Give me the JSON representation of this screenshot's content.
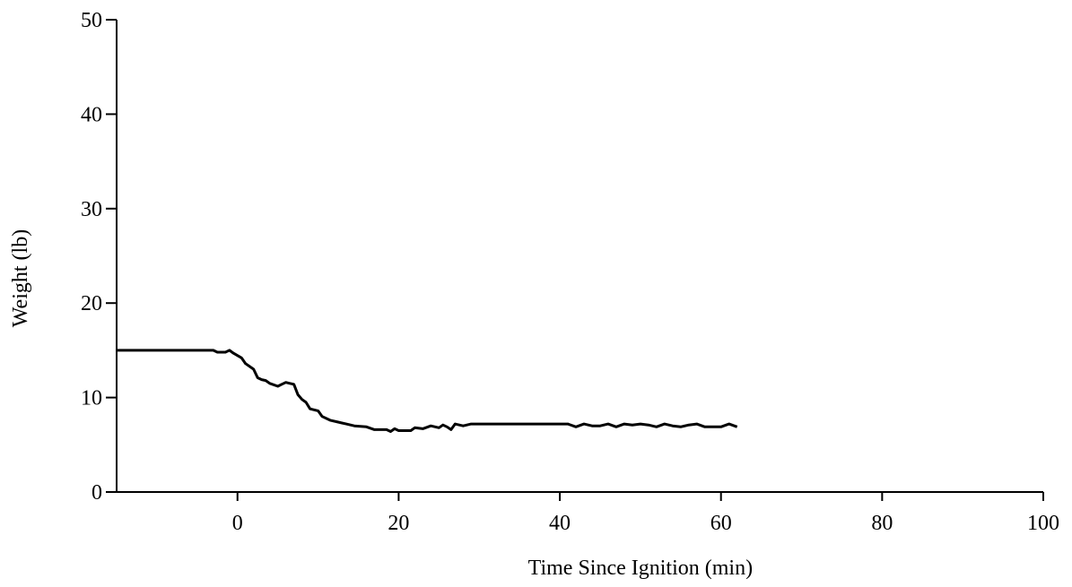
{
  "chart_data": {
    "type": "line",
    "title": "",
    "xlabel": "Time Since Ignition (min)",
    "ylabel": "Weight (lb)",
    "xlim": [
      -15,
      100
    ],
    "ylim": [
      0,
      50
    ],
    "x_ticks": [
      0,
      20,
      40,
      60,
      80,
      100
    ],
    "x_tick_labels": [
      "0",
      "20",
      "40",
      "60",
      "80",
      "100"
    ],
    "y_ticks": [
      0,
      10,
      20,
      30,
      40,
      50
    ],
    "y_tick_labels": [
      "0",
      "10",
      "20",
      "30",
      "40",
      "50"
    ],
    "grid": false,
    "legend": "none",
    "line_color": "#000000",
    "series": [
      {
        "name": "",
        "points": [
          [
            -15,
            15.0
          ],
          [
            -3,
            15.0
          ],
          [
            -2.5,
            14.8
          ],
          [
            -1.5,
            14.8
          ],
          [
            -1,
            15.0
          ],
          [
            -0.5,
            14.7
          ],
          [
            0.5,
            14.2
          ],
          [
            1,
            13.6
          ],
          [
            2,
            13.0
          ],
          [
            2.5,
            12.1
          ],
          [
            3,
            11.9
          ],
          [
            3.5,
            11.8
          ],
          [
            4,
            11.5
          ],
          [
            5,
            11.2
          ],
          [
            5.5,
            11.4
          ],
          [
            6,
            11.6
          ],
          [
            6.5,
            11.5
          ],
          [
            7,
            11.4
          ],
          [
            7.5,
            10.3
          ],
          [
            8,
            9.8
          ],
          [
            8.5,
            9.5
          ],
          [
            9,
            8.8
          ],
          [
            10,
            8.6
          ],
          [
            10.5,
            8.0
          ],
          [
            11.5,
            7.6
          ],
          [
            12.5,
            7.4
          ],
          [
            13.5,
            7.2
          ],
          [
            14.5,
            7.0
          ],
          [
            16,
            6.9
          ],
          [
            17,
            6.6
          ],
          [
            18.5,
            6.6
          ],
          [
            19,
            6.4
          ],
          [
            19.5,
            6.7
          ],
          [
            20,
            6.5
          ],
          [
            21.5,
            6.5
          ],
          [
            22,
            6.8
          ],
          [
            23,
            6.7
          ],
          [
            24,
            7.0
          ],
          [
            25,
            6.8
          ],
          [
            25.5,
            7.1
          ],
          [
            26,
            6.9
          ],
          [
            26.5,
            6.6
          ],
          [
            27,
            7.2
          ],
          [
            28,
            7.0
          ],
          [
            29,
            7.2
          ],
          [
            35,
            7.2
          ],
          [
            41,
            7.2
          ],
          [
            42,
            6.9
          ],
          [
            43,
            7.2
          ],
          [
            44,
            7.0
          ],
          [
            45,
            7.0
          ],
          [
            46,
            7.2
          ],
          [
            47,
            6.9
          ],
          [
            48,
            7.2
          ],
          [
            49,
            7.1
          ],
          [
            50,
            7.2
          ],
          [
            51,
            7.1
          ],
          [
            52,
            6.9
          ],
          [
            53,
            7.2
          ],
          [
            54,
            7.0
          ],
          [
            55,
            6.9
          ],
          [
            56,
            7.1
          ],
          [
            57,
            7.2
          ],
          [
            58,
            6.9
          ],
          [
            59,
            6.9
          ],
          [
            60,
            6.9
          ],
          [
            61,
            7.2
          ],
          [
            62,
            6.9
          ]
        ]
      }
    ]
  }
}
